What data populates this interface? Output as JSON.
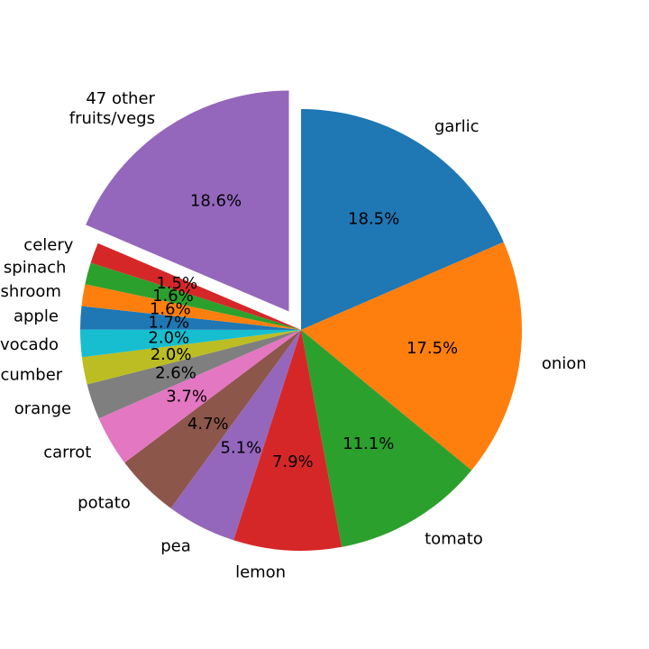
{
  "chart_data": {
    "type": "pie",
    "title": "",
    "start_angle_deg": 90,
    "direction": "clockwise",
    "explode_slice": "47 other\n fruits/vegs",
    "slices": [
      {
        "label": "garlic",
        "value": 18.5,
        "pct_label": "18.5%",
        "color": "#1f77b4"
      },
      {
        "label": "onion",
        "value": 17.5,
        "pct_label": "17.5%",
        "color": "#ff7f0e"
      },
      {
        "label": "tomato",
        "value": 11.1,
        "pct_label": "11.1%",
        "color": "#2ca02c"
      },
      {
        "label": "lemon",
        "value": 7.9,
        "pct_label": "7.9%",
        "color": "#d62728"
      },
      {
        "label": "pea",
        "value": 5.1,
        "pct_label": "5.1%",
        "color": "#9467bd"
      },
      {
        "label": "potato",
        "value": 4.7,
        "pct_label": "4.7%",
        "color": "#8c564b"
      },
      {
        "label": "carrot",
        "value": 3.7,
        "pct_label": "3.7%",
        "color": "#e377c2"
      },
      {
        "label": "orange",
        "value": 2.6,
        "pct_label": "2.6%",
        "color": "#7f7f7f"
      },
      {
        "label": "cucumber",
        "value": 2.0,
        "pct_label": "2.0%",
        "color": "#bcbd22"
      },
      {
        "label": "avocado",
        "value": 2.0,
        "pct_label": "2.0%",
        "color": "#17becf"
      },
      {
        "label": "apple",
        "value": 1.7,
        "pct_label": "1.7%",
        "color": "#1f77b4"
      },
      {
        "label": "mushroom",
        "value": 1.6,
        "pct_label": "1.6%",
        "color": "#ff7f0e"
      },
      {
        "label": "spinach",
        "value": 1.6,
        "pct_label": "1.6%",
        "color": "#2ca02c"
      },
      {
        "label": "celery",
        "value": 1.5,
        "pct_label": "1.5%",
        "color": "#d62728"
      },
      {
        "label": "47 other\n fruits/vegs",
        "value": 18.6,
        "pct_label": "18.6%",
        "color": "#9467bd"
      }
    ]
  }
}
